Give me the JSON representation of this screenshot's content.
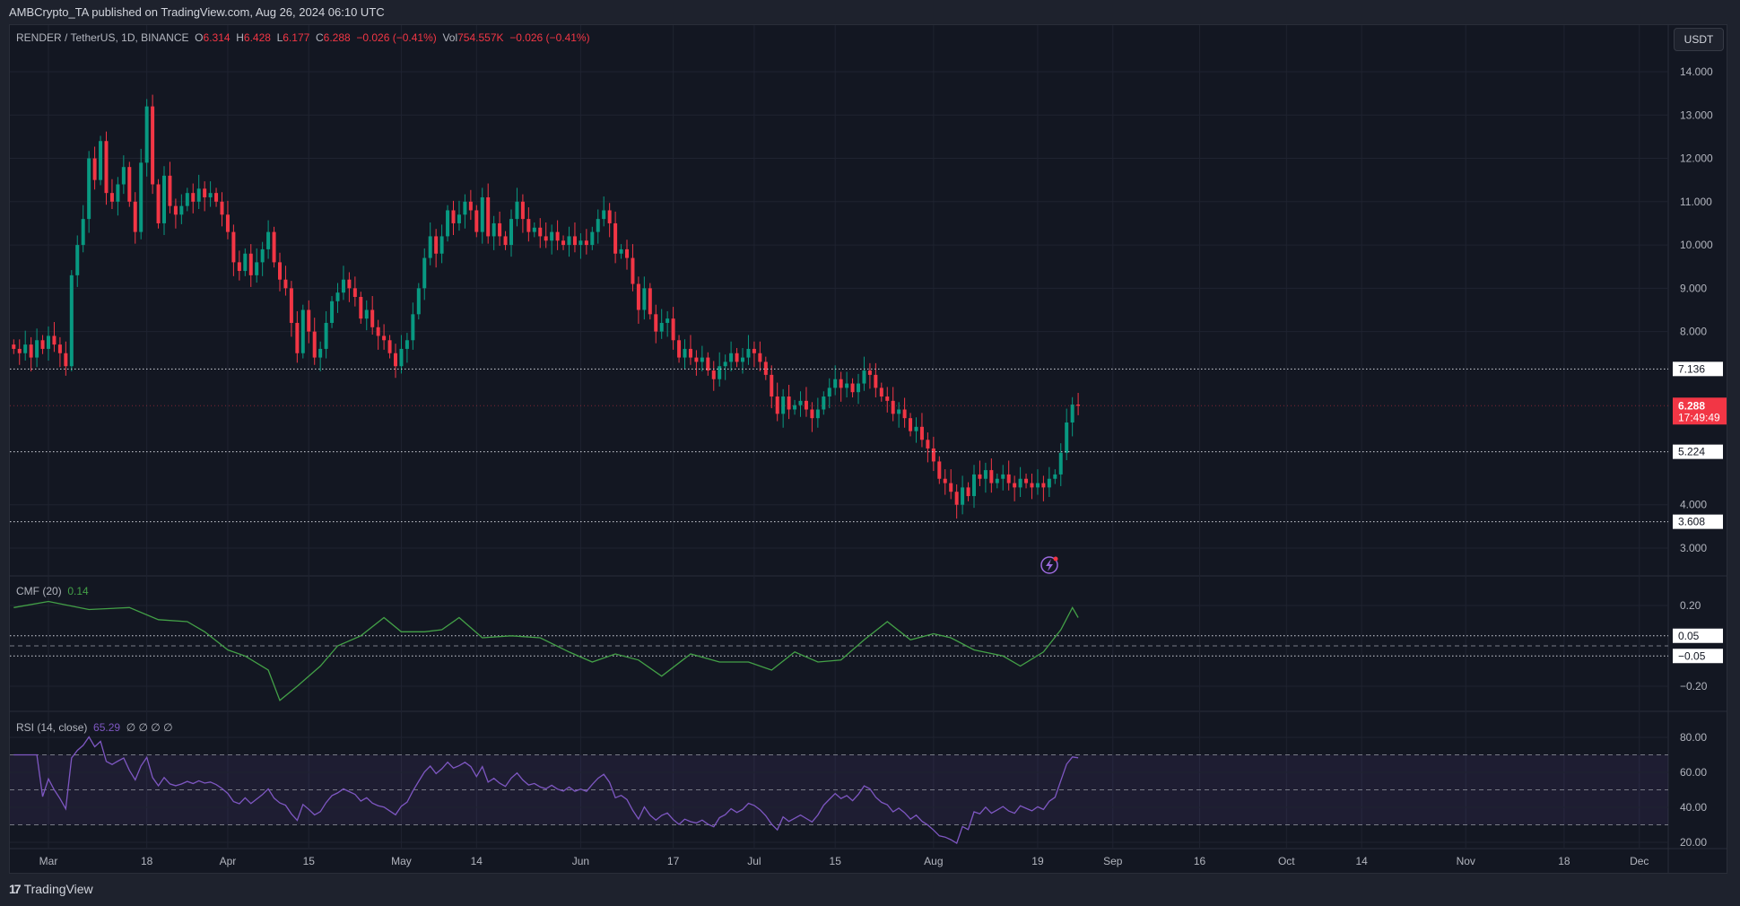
{
  "header": {
    "title": "AMBCrypto_TA published on TradingView.com, Aug 26, 2024 06:10 UTC"
  },
  "legend": {
    "symbol": "RENDER / TetherUS, 1D, BINANCE",
    "o_label": "O",
    "o": "6.314",
    "h_label": "H",
    "h": "6.428",
    "l_label": "L",
    "l": "6.177",
    "c_label": "C",
    "c": "6.288",
    "change": "−0.026 (−0.41%)",
    "vol_label": "Vol",
    "vol": "754.557K",
    "vol_change": "−0.026 (−0.41%)"
  },
  "currency_button": "USDT",
  "footer": {
    "logo": "17",
    "brand": "TradingView"
  },
  "colors": {
    "up": "#089981",
    "down": "#f23645",
    "cmf": "#43a047",
    "rsi": "#7e57c2",
    "background": "#131722"
  },
  "chart_data": {
    "type": "candlestick",
    "start_date": "2024-02-24",
    "closes": [
      7.6,
      7.5,
      7.7,
      7.4,
      7.8,
      7.6,
      7.9,
      7.7,
      7.5,
      7.2,
      9.3,
      10.0,
      10.6,
      12.0,
      11.5,
      12.4,
      11.2,
      11.0,
      11.4,
      11.8,
      11.0,
      10.3,
      11.9,
      13.2,
      11.4,
      10.5,
      11.6,
      10.9,
      10.7,
      10.9,
      11.2,
      11.0,
      11.3,
      11.1,
      11.2,
      11.0,
      10.7,
      10.3,
      9.6,
      9.4,
      9.8,
      9.3,
      9.6,
      9.9,
      10.3,
      9.6,
      9.2,
      9.0,
      8.2,
      7.5,
      8.5,
      8.0,
      7.4,
      7.6,
      8.2,
      8.7,
      8.9,
      9.2,
      9.0,
      8.8,
      8.3,
      8.5,
      8.1,
      7.9,
      7.8,
      7.5,
      7.2,
      7.6,
      7.8,
      8.4,
      9.0,
      9.7,
      10.2,
      9.8,
      10.2,
      10.8,
      10.5,
      10.7,
      11.0,
      10.8,
      10.3,
      11.1,
      10.2,
      10.5,
      10.2,
      10.0,
      10.6,
      11.0,
      10.6,
      10.3,
      10.4,
      10.2,
      10.1,
      10.3,
      10.1,
      10.0,
      10.2,
      10.0,
      10.1,
      10.0,
      10.3,
      10.6,
      10.8,
      10.5,
      9.8,
      9.9,
      9.7,
      9.1,
      8.5,
      9.0,
      8.4,
      8.0,
      8.2,
      8.3,
      7.8,
      7.4,
      7.6,
      7.4,
      7.3,
      7.4,
      7.1,
      6.9,
      7.2,
      7.3,
      7.5,
      7.3,
      7.4,
      7.6,
      7.5,
      7.3,
      7.0,
      6.5,
      6.1,
      6.5,
      6.2,
      6.3,
      6.4,
      6.2,
      6.0,
      6.2,
      6.5,
      6.7,
      6.9,
      6.7,
      6.8,
      6.6,
      6.8,
      7.1,
      7.0,
      6.7,
      6.5,
      6.4,
      6.1,
      6.2,
      6.0,
      5.7,
      5.8,
      5.5,
      5.3,
      5.0,
      4.6,
      4.5,
      4.3,
      4.0,
      4.4,
      4.2,
      4.7,
      4.6,
      4.8,
      4.5,
      4.6,
      4.7,
      4.5,
      4.4,
      4.6,
      4.5,
      4.4,
      4.5,
      4.4,
      4.6,
      4.7,
      5.2,
      5.9,
      6.314,
      6.288
    ],
    "first_open": 7.7,
    "price_axis": {
      "ticks": [
        "14.000",
        "13.000",
        "12.000",
        "11.000",
        "10.000",
        "9.000",
        "8.000",
        "4.000",
        "3.000"
      ],
      "range": [
        2.5,
        14.4
      ]
    },
    "horizontal_levels": [
      {
        "value": 7.136,
        "label": "7.136"
      },
      {
        "value": 5.224,
        "label": "5.224"
      },
      {
        "value": 3.608,
        "label": "3.608"
      }
    ],
    "last_price": {
      "value": 6.288,
      "label": "6.288",
      "countdown": "17:49:49"
    },
    "time_axis": [
      {
        "date": "2024-03-01",
        "label": "Mar"
      },
      {
        "date": "2024-03-18",
        "label": "18"
      },
      {
        "date": "2024-04-01",
        "label": "Apr"
      },
      {
        "date": "2024-04-15",
        "label": "15"
      },
      {
        "date": "2024-05-01",
        "label": "May"
      },
      {
        "date": "2024-05-14",
        "label": "14"
      },
      {
        "date": "2024-06-01",
        "label": "Jun"
      },
      {
        "date": "2024-06-17",
        "label": "17"
      },
      {
        "date": "2024-07-01",
        "label": "Jul"
      },
      {
        "date": "2024-07-15",
        "label": "15"
      },
      {
        "date": "2024-08-01",
        "label": "Aug"
      },
      {
        "date": "2024-08-19",
        "label": "19"
      },
      {
        "date": "2024-09-01",
        "label": "Sep"
      },
      {
        "date": "2024-09-16",
        "label": "16"
      },
      {
        "date": "2024-10-01",
        "label": "Oct"
      },
      {
        "date": "2024-10-14",
        "label": "14"
      },
      {
        "date": "2024-11-01",
        "label": "Nov"
      },
      {
        "date": "2024-11-18",
        "label": "18"
      },
      {
        "date": "2024-12-01",
        "label": "Dec"
      }
    ],
    "cmf": {
      "title": "CMF (20)",
      "value": "0.14",
      "ticks": [
        "0.20",
        "−0.20"
      ],
      "tick_values": [
        0.2,
        -0.2
      ],
      "levels": [
        {
          "value": 0.05,
          "label": "0.05"
        },
        {
          "value": -0.05,
          "label": "−0.05"
        }
      ],
      "zero": 0,
      "points": [
        [
          "2024-02-24",
          0.19
        ],
        [
          "2024-03-01",
          0.22
        ],
        [
          "2024-03-08",
          0.18
        ],
        [
          "2024-03-15",
          0.19
        ],
        [
          "2024-03-20",
          0.13
        ],
        [
          "2024-03-25",
          0.12
        ],
        [
          "2024-03-28",
          0.07
        ],
        [
          "2024-04-01",
          -0.02
        ],
        [
          "2024-04-04",
          -0.05
        ],
        [
          "2024-04-08",
          -0.12
        ],
        [
          "2024-04-10",
          -0.27
        ],
        [
          "2024-04-13",
          -0.2
        ],
        [
          "2024-04-17",
          -0.1
        ],
        [
          "2024-04-20",
          0.0
        ],
        [
          "2024-04-24",
          0.05
        ],
        [
          "2024-04-28",
          0.14
        ],
        [
          "2024-05-01",
          0.07
        ],
        [
          "2024-05-05",
          0.07
        ],
        [
          "2024-05-08",
          0.08
        ],
        [
          "2024-05-11",
          0.14
        ],
        [
          "2024-05-15",
          0.04
        ],
        [
          "2024-05-20",
          0.05
        ],
        [
          "2024-05-25",
          0.04
        ],
        [
          "2024-05-30",
          -0.03
        ],
        [
          "2024-06-03",
          -0.08
        ],
        [
          "2024-06-07",
          -0.04
        ],
        [
          "2024-06-11",
          -0.07
        ],
        [
          "2024-06-15",
          -0.15
        ],
        [
          "2024-06-20",
          -0.04
        ],
        [
          "2024-06-25",
          -0.08
        ],
        [
          "2024-06-30",
          -0.08
        ],
        [
          "2024-07-04",
          -0.12
        ],
        [
          "2024-07-08",
          -0.03
        ],
        [
          "2024-07-12",
          -0.08
        ],
        [
          "2024-07-16",
          -0.07
        ],
        [
          "2024-07-20",
          0.03
        ],
        [
          "2024-07-24",
          0.12
        ],
        [
          "2024-07-28",
          0.03
        ],
        [
          "2024-08-01",
          0.06
        ],
        [
          "2024-08-04",
          0.04
        ],
        [
          "2024-08-08",
          -0.02
        ],
        [
          "2024-08-13",
          -0.05
        ],
        [
          "2024-08-16",
          -0.1
        ],
        [
          "2024-08-20",
          -0.03
        ],
        [
          "2024-08-23",
          0.08
        ],
        [
          "2024-08-25",
          0.19
        ],
        [
          "2024-08-26",
          0.14
        ]
      ]
    },
    "rsi": {
      "title": "RSI (14, close)",
      "value": "65.29",
      "extras": "∅ ∅ ∅ ∅",
      "ticks": [
        "80.00",
        "60.00",
        "40.00",
        "20.00"
      ],
      "tick_values": [
        80,
        60,
        40,
        20
      ],
      "bands": [
        70,
        50,
        30
      ],
      "range": [
        15,
        88
      ]
    }
  }
}
